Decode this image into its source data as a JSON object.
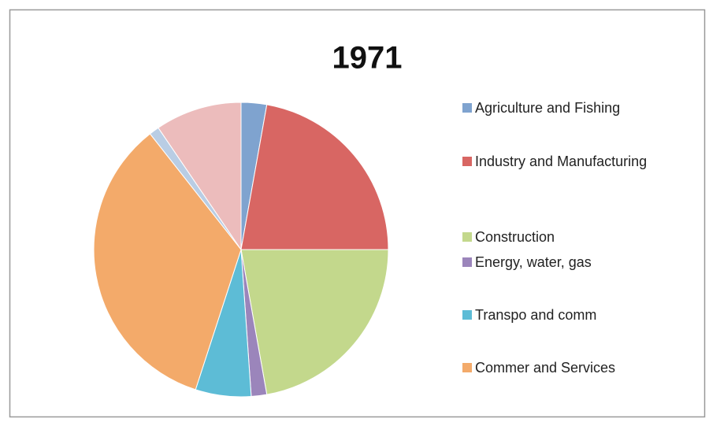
{
  "chart_data": {
    "type": "pie",
    "title": "1971",
    "categories": [
      "Agriculture and Fishing",
      "Industry and Manufacturing",
      "Construction",
      "Energy, water, gas",
      "Transpo and comm",
      "Commer and Services",
      null,
      null
    ],
    "values": [
      2.8,
      22.2,
      22.2,
      1.7,
      6.1,
      34.4,
      1.1,
      9.5
    ],
    "colors": [
      "#7fa3cf",
      "#d86663",
      "#c3d88c",
      "#9b85bb",
      "#5dbcd6",
      "#f3aa6a",
      "#b9cde4",
      "#ecbcbc"
    ],
    "legend": "right"
  }
}
